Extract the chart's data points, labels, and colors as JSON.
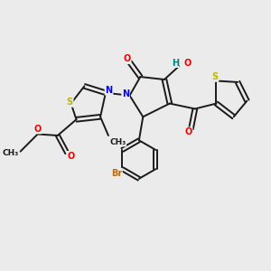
{
  "background_color": "#ebebeb",
  "bond_color": "#1a1a1a",
  "bond_width": 1.4,
  "atom_colors": {
    "S": "#b8b800",
    "N": "#0000ee",
    "O": "#ee0000",
    "Br": "#cc6600",
    "H": "#008080",
    "C": "#1a1a1a"
  },
  "font_size": 7.0
}
